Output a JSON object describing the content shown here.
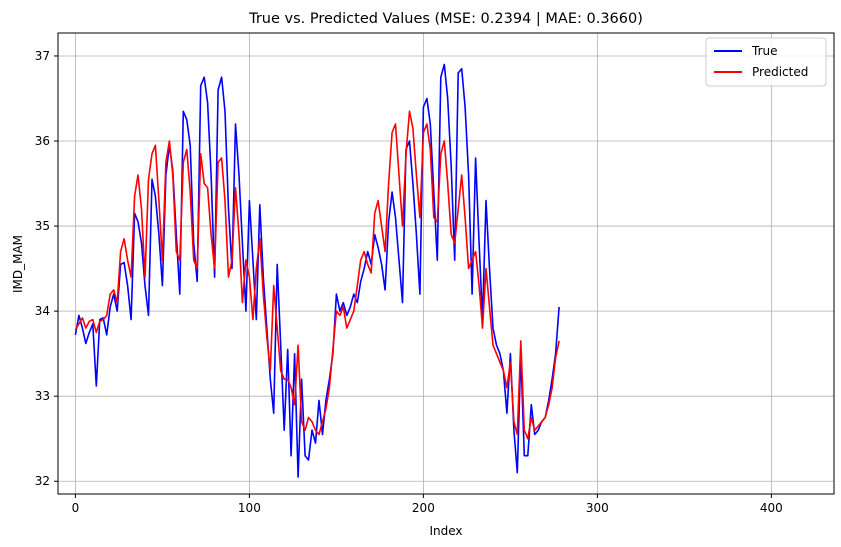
{
  "chart_data": {
    "type": "line",
    "title": "True vs. Predicted Values (MSE: 0.2394 | MAE: 0.3660)",
    "xlabel": "Index",
    "ylabel": "IMD_MAM",
    "xlim": [
      -10,
      436
    ],
    "ylim": [
      31.85,
      37.27
    ],
    "xticks": [
      0,
      100,
      200,
      300,
      400
    ],
    "yticks": [
      32,
      33,
      34,
      35,
      36,
      37
    ],
    "grid": true,
    "legend_position": "top-right",
    "x_start": 0,
    "x_step": 2,
    "series": [
      {
        "name": "True",
        "color": "#0000ff",
        "values": [
          33.72,
          33.95,
          33.8,
          33.62,
          33.75,
          33.85,
          33.12,
          33.9,
          33.92,
          33.72,
          34.05,
          34.2,
          34.0,
          34.55,
          34.57,
          34.3,
          33.9,
          35.15,
          35.05,
          34.8,
          34.3,
          33.95,
          35.55,
          35.35,
          34.9,
          34.3,
          35.6,
          35.95,
          35.65,
          34.9,
          34.2,
          36.35,
          36.25,
          35.95,
          34.8,
          34.35,
          36.65,
          36.75,
          36.45,
          35.6,
          34.4,
          36.6,
          36.75,
          36.35,
          35.2,
          34.5,
          36.2,
          35.6,
          34.8,
          34.0,
          35.3,
          34.6,
          33.9,
          35.25,
          34.4,
          33.8,
          33.2,
          32.8,
          34.55,
          33.6,
          32.6,
          33.55,
          32.3,
          33.5,
          32.05,
          33.2,
          32.3,
          32.25,
          32.6,
          32.45,
          32.95,
          32.55,
          32.95,
          33.2,
          33.5,
          34.2,
          34.0,
          34.1,
          33.95,
          34.05,
          34.2,
          34.1,
          34.35,
          34.5,
          34.7,
          34.55,
          34.9,
          34.75,
          34.55,
          34.25,
          35.05,
          35.4,
          35.1,
          34.6,
          34.1,
          35.9,
          36.0,
          35.5,
          34.9,
          34.2,
          36.4,
          36.5,
          36.2,
          35.4,
          34.6,
          36.75,
          36.9,
          36.5,
          35.7,
          34.6,
          36.8,
          36.85,
          36.4,
          35.6,
          34.2,
          35.8,
          34.8,
          33.9,
          35.3,
          34.5,
          33.8,
          33.6,
          33.5,
          33.3,
          32.8,
          33.5,
          32.6,
          32.1,
          33.5,
          32.3,
          32.3,
          32.9,
          32.55,
          32.6,
          32.7,
          32.75,
          32.95,
          33.2,
          33.5,
          34.05
        ]
      },
      {
        "name": "Predicted",
        "color": "#ff0000",
        "values": [
          33.78,
          33.85,
          33.92,
          33.8,
          33.88,
          33.9,
          33.75,
          33.88,
          33.9,
          33.95,
          34.2,
          34.25,
          34.1,
          34.7,
          34.85,
          34.6,
          34.4,
          35.35,
          35.6,
          35.2,
          34.4,
          35.55,
          35.85,
          35.95,
          35.3,
          34.6,
          35.75,
          36.0,
          35.6,
          34.7,
          34.6,
          35.75,
          35.9,
          35.4,
          34.6,
          34.5,
          35.85,
          35.5,
          35.45,
          34.9,
          34.5,
          35.75,
          35.8,
          35.3,
          34.4,
          34.6,
          35.45,
          34.9,
          34.1,
          34.6,
          34.4,
          33.9,
          34.5,
          34.85,
          34.2,
          33.7,
          33.3,
          34.3,
          33.8,
          33.3,
          33.2,
          33.2,
          33.1,
          32.9,
          33.6,
          32.7,
          32.6,
          32.75,
          32.7,
          32.6,
          32.55,
          32.7,
          32.85,
          33.1,
          33.55,
          34.0,
          33.95,
          34.05,
          33.8,
          33.9,
          34.0,
          34.3,
          34.6,
          34.7,
          34.55,
          34.45,
          35.15,
          35.3,
          35.0,
          34.7,
          35.5,
          36.1,
          36.2,
          35.6,
          35.0,
          35.85,
          36.35,
          36.15,
          35.6,
          35.1,
          36.1,
          36.2,
          35.9,
          35.1,
          35.05,
          35.85,
          36.0,
          35.5,
          34.9,
          34.8,
          35.2,
          35.6,
          35.1,
          34.5,
          34.6,
          34.7,
          34.3,
          33.8,
          34.5,
          34.05,
          33.6,
          33.5,
          33.4,
          33.3,
          33.1,
          33.4,
          32.7,
          32.55,
          33.65,
          32.6,
          32.5,
          32.75,
          32.6,
          32.65,
          32.7,
          32.75,
          32.9,
          33.1,
          33.45,
          33.65
        ]
      }
    ]
  }
}
